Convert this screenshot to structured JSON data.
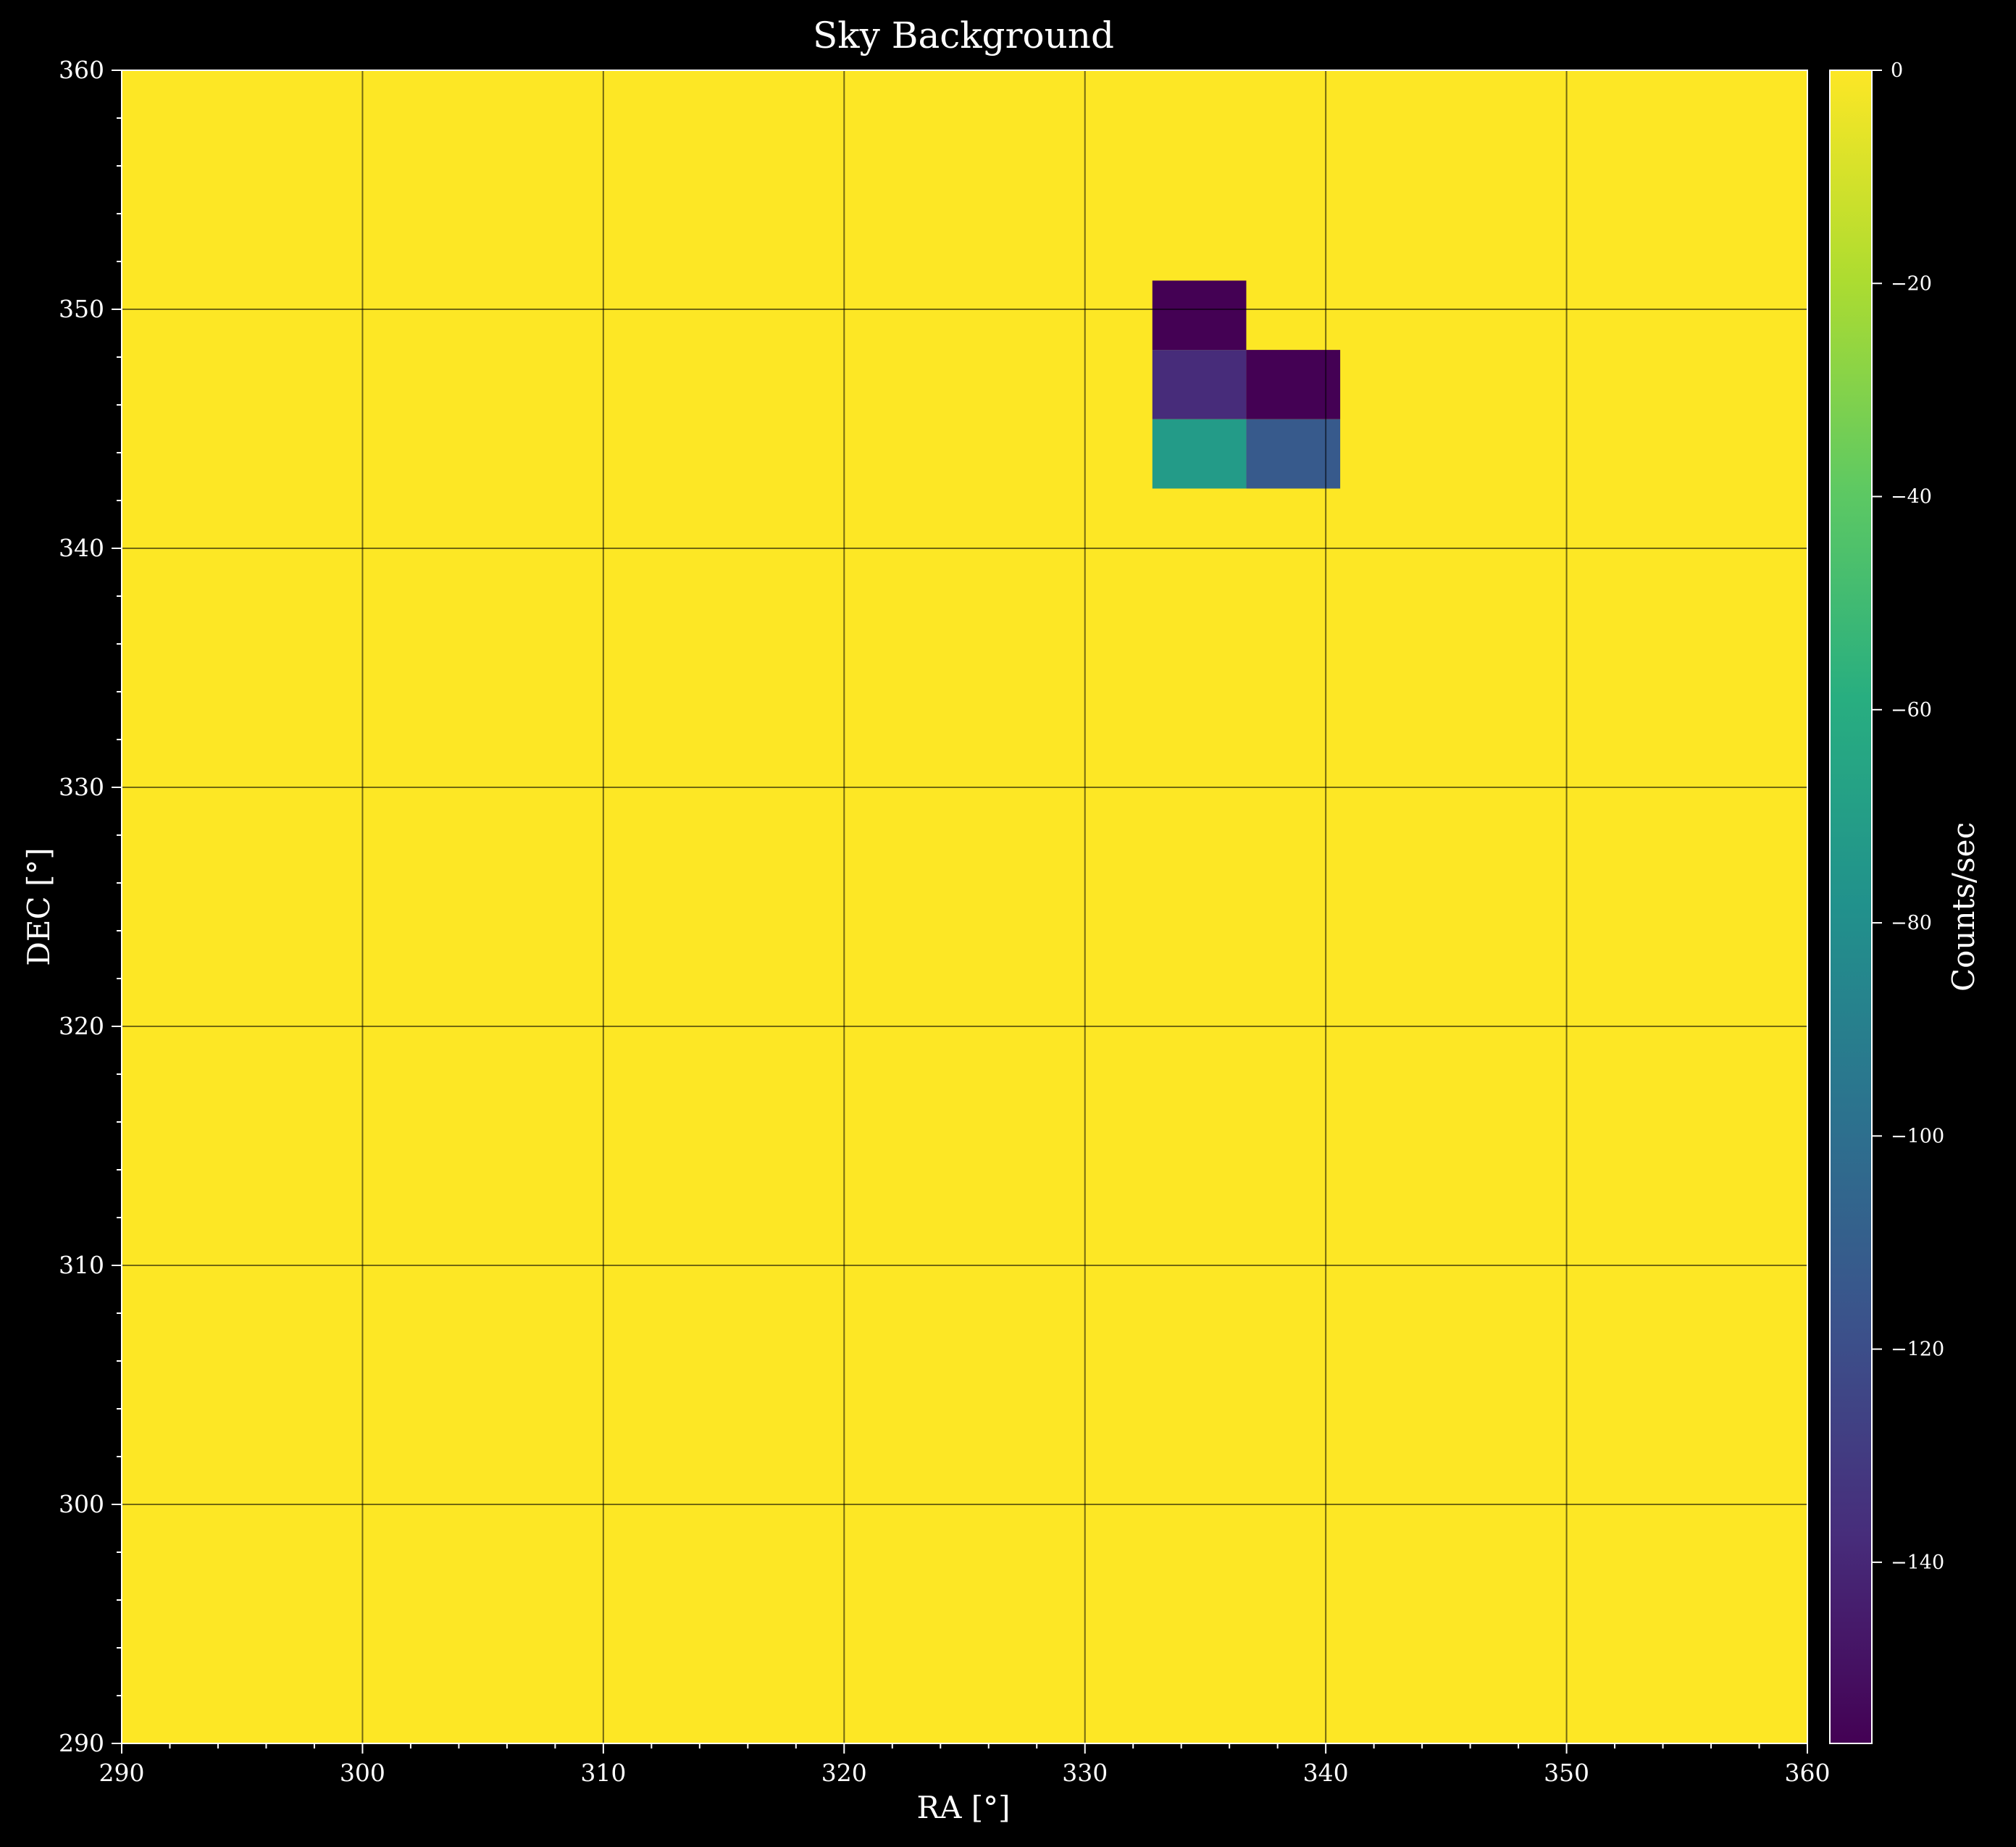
{
  "chart_data": {
    "type": "heatmap",
    "title": "Sky Background",
    "xlabel": "RA [°]",
    "ylabel": "DEC [°]",
    "colorbar_label": "Counts/sec",
    "xlim": [
      290,
      360
    ],
    "ylim": [
      290,
      360
    ],
    "xticks": [
      290,
      300,
      310,
      320,
      330,
      340,
      350,
      360
    ],
    "yticks": [
      290,
      300,
      310,
      320,
      330,
      340,
      350,
      360
    ],
    "grid": true,
    "background_value": 0,
    "colormap": "viridis",
    "color_range": [
      -157,
      0
    ],
    "colorbar_ticks": [
      0,
      -20,
      -40,
      -60,
      -80,
      -100,
      -120,
      -140
    ],
    "colorbar_tick_labels": [
      "0",
      "−20",
      "−40",
      "−60",
      "−80",
      "−100",
      "−120",
      "−140"
    ],
    "cells": [
      {
        "ra": [
          332.8,
          336.7
        ],
        "dec": [
          348.3,
          351.2
        ],
        "value": -157
      },
      {
        "ra": [
          332.8,
          336.7
        ],
        "dec": [
          345.4,
          348.3
        ],
        "value": -138
      },
      {
        "ra": [
          336.7,
          340.6
        ],
        "dec": [
          345.4,
          348.3
        ],
        "value": -157
      },
      {
        "ra": [
          332.8,
          336.7
        ],
        "dec": [
          342.5,
          345.4
        ],
        "value": -72
      },
      {
        "ra": [
          336.7,
          340.6
        ],
        "dec": [
          342.5,
          345.4
        ],
        "value": -113
      }
    ]
  }
}
